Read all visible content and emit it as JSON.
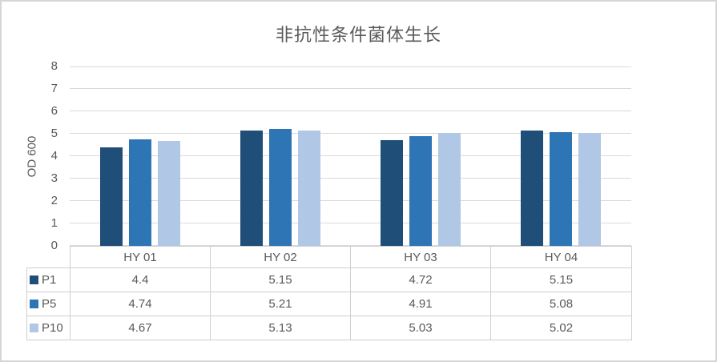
{
  "chart_data": {
    "type": "bar",
    "title": "非抗性条件菌体生长",
    "categories": [
      "HY 01",
      "HY 02",
      "HY 03",
      "HY 04"
    ],
    "series": [
      {
        "name": "P1",
        "color": "#1F4E79",
        "values": [
          4.4,
          5.15,
          4.72,
          5.15
        ]
      },
      {
        "name": "P5",
        "color": "#2E75B6",
        "values": [
          4.74,
          5.21,
          4.91,
          5.08
        ]
      },
      {
        "name": "P10",
        "color": "#B0C7E6",
        "values": [
          4.67,
          5.13,
          5.03,
          5.02
        ]
      }
    ],
    "xlabel": "",
    "ylabel": "OD 600",
    "ylim": [
      0,
      8
    ],
    "ytick_step": 1,
    "grid": true,
    "legend_position": "data-table-left-column",
    "data_table_shown": true
  },
  "colors": {
    "title_text": "#595959",
    "axis_text": "#595959",
    "gridline": "#D9D9D9",
    "table_border": "#D0CECE",
    "frame_border": "#D6D6D6",
    "background": "#FFFFFF"
  }
}
